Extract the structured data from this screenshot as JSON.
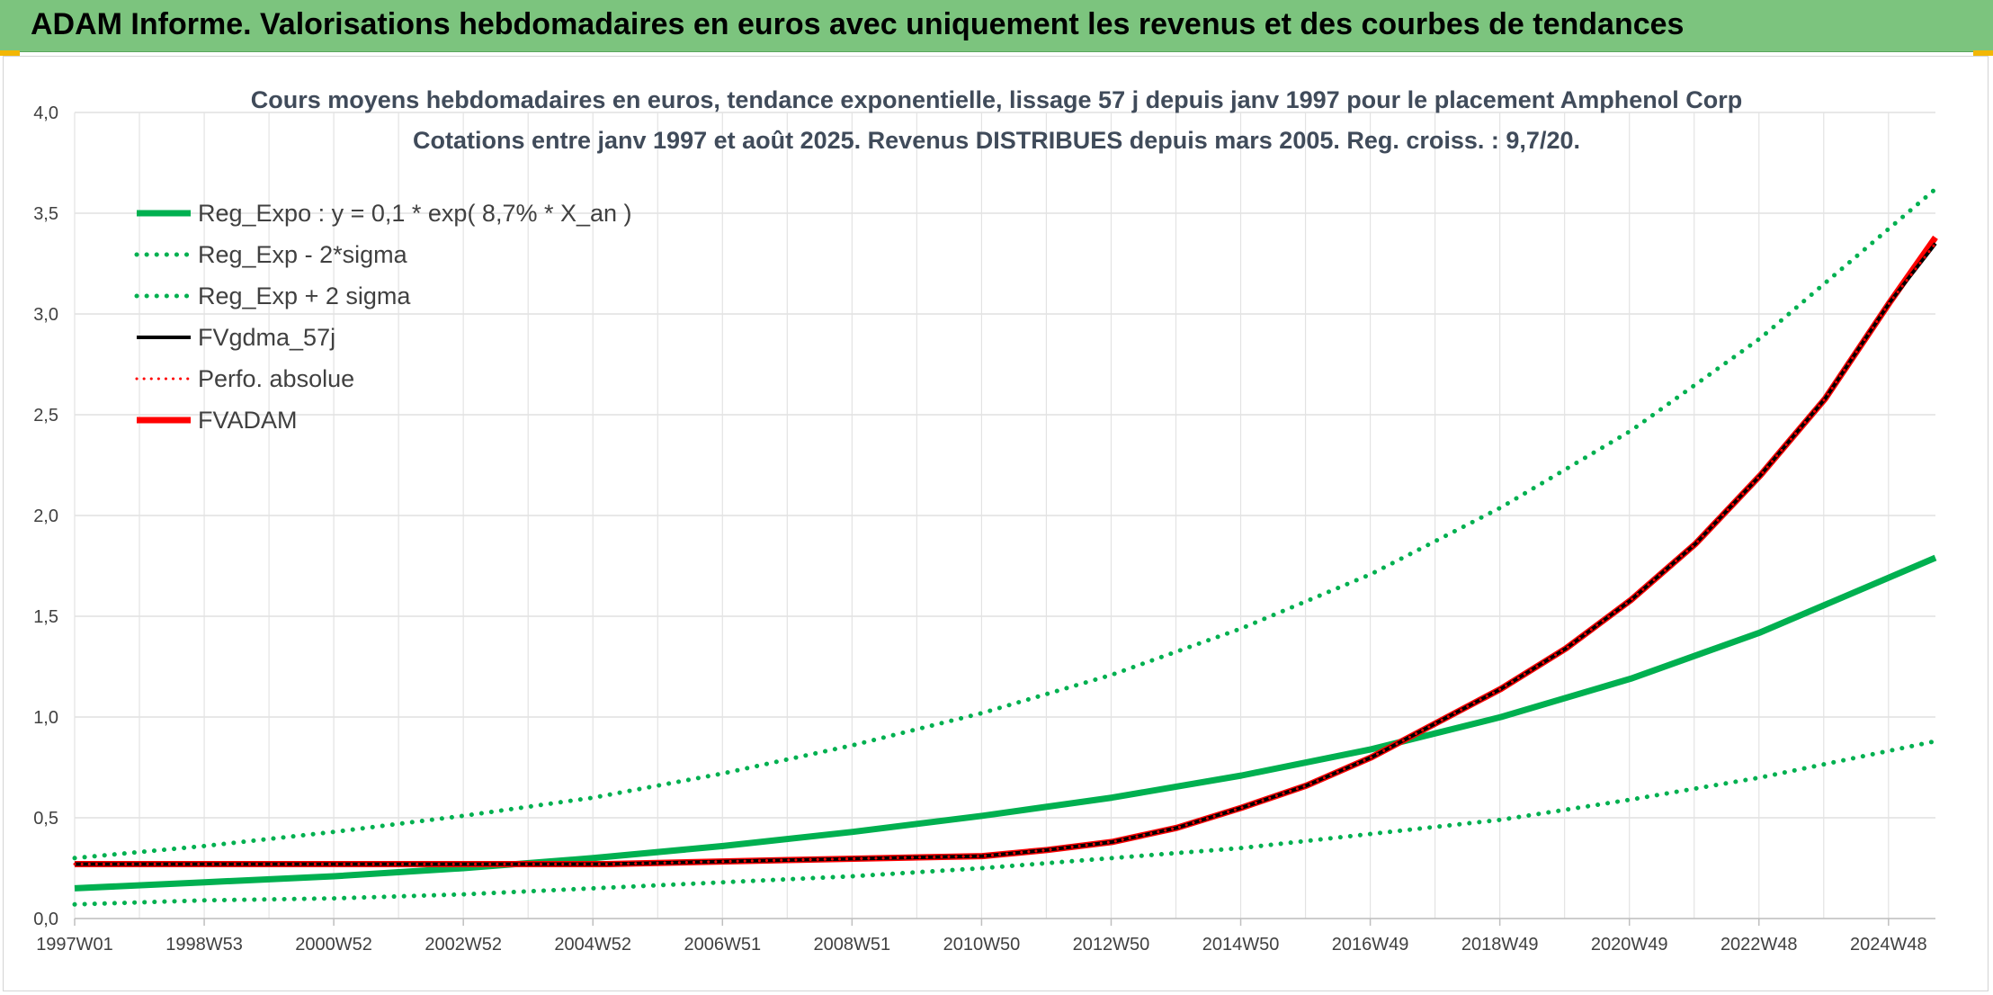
{
  "banner": {
    "title": "ADAM Informe. Valorisations hebdomadaires en euros avec uniquement les revenus et des courbes de tendances",
    "color": "#7cc47e"
  },
  "chart_data": {
    "type": "line",
    "title": "Cours moyens hebdomadaires en euros, tendance exponentielle, lissage 57 j depuis janv 1997 pour le placement Amphenol Corp",
    "subtitle": "Cotations entre janv 1997 et août 2025. Revenus DISTRIBUES depuis mars 2005. Reg. croiss. : 9,7/20.",
    "xlabel": "",
    "ylabel": "",
    "xlim": [
      "1997W01",
      "2025W35"
    ],
    "ylim": [
      0,
      4
    ],
    "y_ticks": [
      "0,0",
      "0,5",
      "1,0",
      "1,5",
      "2,0",
      "2,5",
      "3,0",
      "3,5",
      "4,0"
    ],
    "x_ticks": [
      "1997W01",
      "1998W53",
      "2000W52",
      "2002W52",
      "2004W52",
      "2006W51",
      "2008W51",
      "2010W50",
      "2012W50",
      "2014W50",
      "2016W49",
      "2018W49",
      "2020W49",
      "2022W48",
      "2024W48"
    ],
    "grid": true,
    "legend_position": "top-left",
    "series": [
      {
        "name": "Reg_Expo : y = 0,1 * exp( 8,7% *  X_an )",
        "color": "#00b050",
        "style": "solid",
        "x": [
          1997.0,
          1999.0,
          2001.0,
          2003.0,
          2005.0,
          2007.0,
          2009.0,
          2011.0,
          2013.0,
          2015.0,
          2017.0,
          2019.0,
          2021.0,
          2023.0,
          2025.7
        ],
        "y": [
          0.15,
          0.18,
          0.21,
          0.25,
          0.3,
          0.36,
          0.43,
          0.51,
          0.6,
          0.71,
          0.84,
          1.0,
          1.19,
          1.42,
          1.79
        ]
      },
      {
        "name": "Reg_Exp - 2*sigma",
        "color": "#00b050",
        "style": "dotted",
        "x": [
          1997.0,
          1999.0,
          2001.0,
          2003.0,
          2005.0,
          2007.0,
          2009.0,
          2011.0,
          2013.0,
          2015.0,
          2017.0,
          2019.0,
          2021.0,
          2023.0,
          2025.7
        ],
        "y": [
          0.07,
          0.09,
          0.1,
          0.12,
          0.15,
          0.18,
          0.21,
          0.25,
          0.3,
          0.35,
          0.42,
          0.49,
          0.59,
          0.7,
          0.88
        ]
      },
      {
        "name": "Reg_Exp + 2 sigma",
        "color": "#00b050",
        "style": "dotted",
        "x": [
          1997.0,
          1999.0,
          2001.0,
          2003.0,
          2005.0,
          2007.0,
          2009.0,
          2011.0,
          2013.0,
          2015.0,
          2017.0,
          2019.0,
          2021.0,
          2023.0,
          2025.7
        ],
        "y": [
          0.3,
          0.36,
          0.43,
          0.51,
          0.6,
          0.72,
          0.86,
          1.02,
          1.21,
          1.44,
          1.71,
          2.04,
          2.42,
          2.88,
          3.62
        ]
      },
      {
        "name": "FVgdma_57j",
        "color": "#000000",
        "style": "solid",
        "x": [
          1997.0,
          2000.0,
          2003.0,
          2005.2,
          2008.0,
          2011.0,
          2012.0,
          2013.0,
          2014.0,
          2015.0,
          2016.0,
          2017.0,
          2018.0,
          2019.0,
          2020.0,
          2021.0,
          2022.0,
          2023.0,
          2024.0,
          2025.0,
          2025.7
        ],
        "y": [
          0.27,
          0.27,
          0.27,
          0.27,
          0.29,
          0.31,
          0.34,
          0.38,
          0.45,
          0.55,
          0.66,
          0.8,
          0.97,
          1.14,
          1.34,
          1.58,
          1.86,
          2.2,
          2.58,
          3.06,
          3.35
        ]
      },
      {
        "name": "Perfo. absolue",
        "color": "#ff0000",
        "style": "dotted",
        "x": [
          1997.0,
          2000.0,
          2003.0,
          2005.2,
          2008.0,
          2011.0,
          2012.0,
          2013.0,
          2014.0,
          2015.0,
          2016.0,
          2017.0,
          2018.0,
          2019.0,
          2020.0,
          2021.0,
          2022.0,
          2023.0,
          2024.0,
          2025.0,
          2025.7
        ],
        "y": [
          0.27,
          0.27,
          0.27,
          0.27,
          0.29,
          0.31,
          0.34,
          0.38,
          0.45,
          0.55,
          0.66,
          0.8,
          0.97,
          1.14,
          1.34,
          1.58,
          1.86,
          2.2,
          2.58,
          3.06,
          3.35
        ]
      },
      {
        "name": "FVADAM",
        "color": "#ff0000",
        "style": "solid",
        "x": [
          1997.0,
          2000.0,
          2003.0,
          2005.2,
          2008.0,
          2011.0,
          2012.0,
          2013.0,
          2014.0,
          2015.0,
          2016.0,
          2017.0,
          2018.0,
          2019.0,
          2020.0,
          2021.0,
          2022.0,
          2023.0,
          2024.0,
          2025.0,
          2025.7
        ],
        "y": [
          0.27,
          0.27,
          0.27,
          0.27,
          0.29,
          0.31,
          0.34,
          0.38,
          0.45,
          0.55,
          0.66,
          0.8,
          0.97,
          1.14,
          1.34,
          1.58,
          1.86,
          2.2,
          2.58,
          3.06,
          3.38
        ]
      }
    ]
  }
}
